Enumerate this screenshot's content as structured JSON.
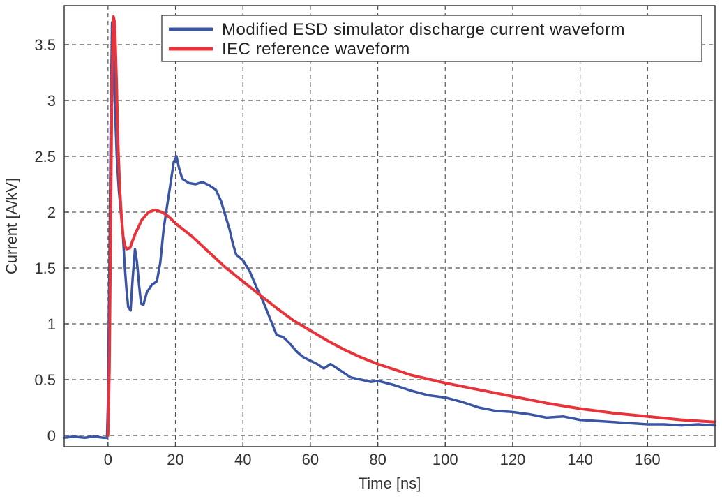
{
  "chart_data": {
    "type": "line",
    "title": "",
    "xlabel": "Time [ns]",
    "ylabel": "Current [A/kV]",
    "xlim": [
      -13,
      180
    ],
    "ylim": [
      -0.1,
      3.85
    ],
    "x_ticks": [
      0,
      20,
      40,
      60,
      80,
      100,
      120,
      140,
      160
    ],
    "y_ticks": [
      0,
      0.5,
      1,
      1.5,
      2,
      2.5,
      3,
      3.5
    ],
    "y_tick_labels": [
      "0",
      "0.5",
      "1",
      "1.5",
      "2",
      "2.5",
      "3",
      "3.5"
    ],
    "grid": true,
    "legend_position": "top-right",
    "series": [
      {
        "name": "Modified ESD simulator discharge current waveform",
        "color": "#3a55a4",
        "points": [
          [
            -13,
            -0.02
          ],
          [
            -10,
            -0.01
          ],
          [
            -7,
            -0.02
          ],
          [
            -4,
            -0.01
          ],
          [
            -1.5,
            -0.02
          ],
          [
            -0.3,
            -0.02
          ],
          [
            0,
            0.3
          ],
          [
            0.4,
            1.5
          ],
          [
            0.8,
            2.8
          ],
          [
            1.2,
            3.7
          ],
          [
            1.6,
            3.45
          ],
          [
            2.0,
            3.0
          ],
          [
            2.6,
            2.5
          ],
          [
            3.2,
            2.2
          ],
          [
            3.8,
            2.0
          ],
          [
            4.4,
            1.8
          ],
          [
            5,
            1.5
          ],
          [
            5.5,
            1.3
          ],
          [
            6,
            1.15
          ],
          [
            6.7,
            1.12
          ],
          [
            7.3,
            1.4
          ],
          [
            8,
            1.67
          ],
          [
            8.6,
            1.55
          ],
          [
            9.2,
            1.35
          ],
          [
            9.8,
            1.18
          ],
          [
            10.5,
            1.17
          ],
          [
            11.5,
            1.28
          ],
          [
            13,
            1.35
          ],
          [
            14.5,
            1.38
          ],
          [
            15.5,
            1.55
          ],
          [
            16.5,
            1.85
          ],
          [
            17.5,
            2.05
          ],
          [
            18.5,
            2.25
          ],
          [
            19.5,
            2.45
          ],
          [
            20.3,
            2.5
          ],
          [
            21,
            2.4
          ],
          [
            22,
            2.3
          ],
          [
            24,
            2.26
          ],
          [
            26,
            2.25
          ],
          [
            28,
            2.27
          ],
          [
            30,
            2.24
          ],
          [
            32,
            2.2
          ],
          [
            33.5,
            2.1
          ],
          [
            35,
            1.95
          ],
          [
            36,
            1.85
          ],
          [
            37,
            1.72
          ],
          [
            38,
            1.62
          ],
          [
            40,
            1.57
          ],
          [
            42,
            1.47
          ],
          [
            44,
            1.33
          ],
          [
            46,
            1.2
          ],
          [
            48,
            1.05
          ],
          [
            50,
            0.9
          ],
          [
            52,
            0.88
          ],
          [
            54,
            0.82
          ],
          [
            56,
            0.75
          ],
          [
            58,
            0.7
          ],
          [
            60,
            0.67
          ],
          [
            62,
            0.64
          ],
          [
            64,
            0.6
          ],
          [
            66,
            0.64
          ],
          [
            68,
            0.6
          ],
          [
            70,
            0.56
          ],
          [
            72,
            0.52
          ],
          [
            75,
            0.5
          ],
          [
            78,
            0.48
          ],
          [
            80,
            0.49
          ],
          [
            85,
            0.45
          ],
          [
            90,
            0.4
          ],
          [
            95,
            0.36
          ],
          [
            100,
            0.34
          ],
          [
            105,
            0.3
          ],
          [
            110,
            0.25
          ],
          [
            115,
            0.22
          ],
          [
            120,
            0.21
          ],
          [
            125,
            0.19
          ],
          [
            130,
            0.16
          ],
          [
            135,
            0.17
          ],
          [
            140,
            0.14
          ],
          [
            145,
            0.13
          ],
          [
            150,
            0.12
          ],
          [
            155,
            0.11
          ],
          [
            160,
            0.1
          ],
          [
            165,
            0.1
          ],
          [
            170,
            0.09
          ],
          [
            175,
            0.1
          ],
          [
            180,
            0.09
          ]
        ]
      },
      {
        "name": "IEC reference waveform",
        "color": "#e8333a",
        "points": [
          [
            0,
            0.0
          ],
          [
            0.4,
            0.6
          ],
          [
            0.8,
            1.9
          ],
          [
            1.2,
            3.2
          ],
          [
            1.6,
            3.75
          ],
          [
            2.0,
            3.7
          ],
          [
            2.5,
            3.2
          ],
          [
            3,
            2.6
          ],
          [
            3.5,
            2.2
          ],
          [
            4,
            1.95
          ],
          [
            4.5,
            1.78
          ],
          [
            5,
            1.7
          ],
          [
            5.5,
            1.67
          ],
          [
            6.5,
            1.68
          ],
          [
            8,
            1.8
          ],
          [
            10,
            1.93
          ],
          [
            12,
            2.0
          ],
          [
            14,
            2.02
          ],
          [
            16,
            2.0
          ],
          [
            18,
            1.96
          ],
          [
            20,
            1.9
          ],
          [
            25,
            1.78
          ],
          [
            30,
            1.64
          ],
          [
            35,
            1.5
          ],
          [
            40,
            1.38
          ],
          [
            45,
            1.26
          ],
          [
            50,
            1.14
          ],
          [
            55,
            1.03
          ],
          [
            60,
            0.94
          ],
          [
            65,
            0.85
          ],
          [
            70,
            0.77
          ],
          [
            75,
            0.7
          ],
          [
            80,
            0.64
          ],
          [
            90,
            0.54
          ],
          [
            100,
            0.47
          ],
          [
            110,
            0.41
          ],
          [
            120,
            0.35
          ],
          [
            130,
            0.29
          ],
          [
            140,
            0.24
          ],
          [
            150,
            0.2
          ],
          [
            160,
            0.17
          ],
          [
            170,
            0.14
          ],
          [
            180,
            0.12
          ]
        ]
      }
    ]
  }
}
